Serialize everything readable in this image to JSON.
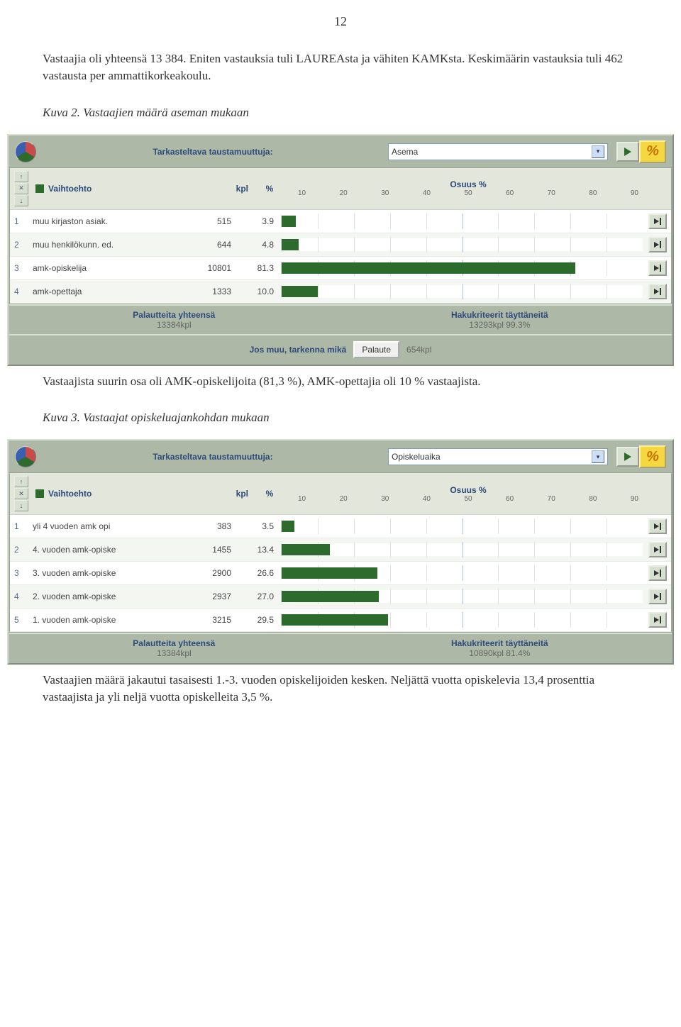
{
  "page_number": "12",
  "intro_text": "Vastaajia oli yhteensä 13 384. Eniten vastauksia tuli LAUREAsta ja vähiten KAMKsta. Keskimäärin vastauksia tuli 462 vastausta per ammattikorkeakoulu.",
  "caption1": "Kuva 2. Vastaajien määrä aseman mukaan",
  "caption2": "Kuva 3. Vastaajat opiskeluajankohdan mukaan",
  "mid_text": "Vastaajista suurin osa oli  AMK-opiskelijoita (81,3 %), AMK-opettajia oli 10 % vastaajista.",
  "outro_text": "Vastaajien määrä jakautui tasaisesti 1.-3. vuoden opiskelijoiden kesken. Neljättä vuotta opiskelevia 13,4  prosenttia vastaajista ja yli neljä vuotta opiskelleita 3,5 %.",
  "shared": {
    "top_label": "Tarkasteltava taustamuuttuja:",
    "col_vaihto": "Vaihtoehto",
    "col_kpl": "kpl",
    "col_pct": "%",
    "osuus": "Osuus %",
    "footer_left_label": "Palautteita yhteensä",
    "footer_right_label": "Hakukriteerit täyttäneitä",
    "percent_glyph": "%",
    "ticks": [
      "10",
      "20",
      "30",
      "40",
      "50",
      "60",
      "70",
      "80",
      "90"
    ],
    "bar_color": "#2c6b2c",
    "grid_color": "#e0e0e0",
    "grid_accent_color": "#a8c0e0"
  },
  "chart1": {
    "select_value": "Asema",
    "rows": [
      {
        "idx": "1",
        "label": "muu kirjaston asiak.",
        "kpl": "515",
        "pct": "3.9",
        "pct_num": 3.9
      },
      {
        "idx": "2",
        "label": "muu henkilökunn. ed.",
        "kpl": "644",
        "pct": "4.8",
        "pct_num": 4.8
      },
      {
        "idx": "3",
        "label": "amk-opiskelija",
        "kpl": "10801",
        "pct": "81.3",
        "pct_num": 81.3
      },
      {
        "idx": "4",
        "label": "amk-opettaja",
        "kpl": "1333",
        "pct": "10.0",
        "pct_num": 10.0
      }
    ],
    "footer_left_value": "13384kpl",
    "footer_right_value": "13293kpl   99.3%",
    "aux_label": "Jos muu, tarkenna mikä",
    "aux_button": "Palaute",
    "aux_value": "654kpl"
  },
  "chart2": {
    "select_value": "Opiskeluaika",
    "rows": [
      {
        "idx": "1",
        "label": "yli 4 vuoden amk opi",
        "kpl": "383",
        "pct": "3.5",
        "pct_num": 3.5
      },
      {
        "idx": "2",
        "label": "4. vuoden amk-opiske",
        "kpl": "1455",
        "pct": "13.4",
        "pct_num": 13.4
      },
      {
        "idx": "3",
        "label": "3. vuoden amk-opiske",
        "kpl": "2900",
        "pct": "26.6",
        "pct_num": 26.6
      },
      {
        "idx": "4",
        "label": "2. vuoden amk-opiske",
        "kpl": "2937",
        "pct": "27.0",
        "pct_num": 27.0
      },
      {
        "idx": "5",
        "label": "1. vuoden amk-opiske",
        "kpl": "3215",
        "pct": "29.5",
        "pct_num": 29.5
      }
    ],
    "footer_left_value": "13384kpl",
    "footer_right_value": "10890kpl   81.4%"
  }
}
